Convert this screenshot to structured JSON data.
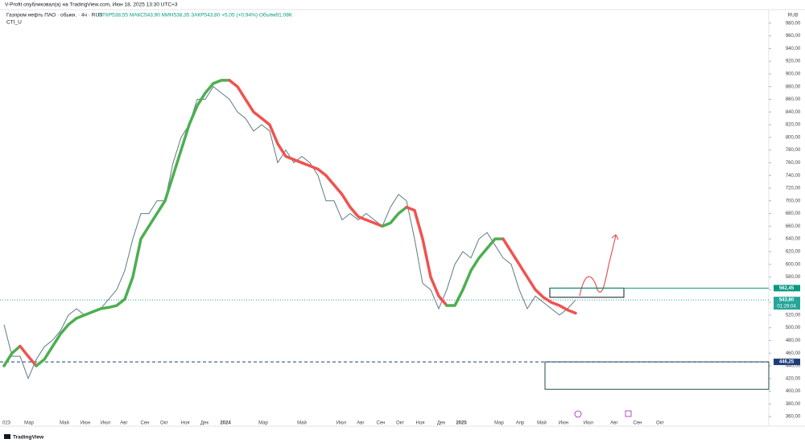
{
  "header": "V-Profit опубликовал(а) на TradingView.com, Июн 18, 2025 13:30 UTC+3",
  "footer": "TradingView",
  "chart_data": {
    "type": "line",
    "title": "Газпром нефть ПАО · обыкн. · 4ч · RUS",
    "ohlc_label": "ОТКР538,55 МАКС543,90 МИН538,35 ЗАКР543,80 +5,05 (+0,94%) Объём91,08K",
    "indicator": "CTI_U",
    "currency": "RUB",
    "x_labels": [
      "023",
      "Мар",
      "Май",
      "Июн",
      "Июл",
      "Авг",
      "Сен",
      "Окт",
      "Ноя",
      "Дек",
      "2024",
      "Мар",
      "Май",
      "Июл",
      "Авг",
      "Сен",
      "Окт",
      "Ноя",
      "Дек",
      "2025",
      "Мар",
      "Апр",
      "Май",
      "Июн",
      "Июл",
      "Авг",
      "Сен",
      "Окт"
    ],
    "series": [
      {
        "name": "Газпром нефть",
        "color": "#5d7b86",
        "values": [
          505,
          455,
          455,
          420,
          450,
          470,
          480,
          495,
          520,
          530,
          520,
          525,
          530,
          545,
          560,
          590,
          640,
          680,
          680,
          700,
          700,
          760,
          800,
          820,
          860,
          860,
          880,
          870,
          860,
          840,
          830,
          810,
          820,
          810,
          760,
          780,
          760,
          770,
          760,
          740,
          700,
          700,
          670,
          680,
          670,
          680,
          670,
          660,
          690,
          710,
          700,
          640,
          570,
          560,
          530,
          560,
          600,
          620,
          610,
          640,
          650,
          630,
          610,
          600,
          560,
          530,
          550,
          540,
          530,
          520,
          530,
          543.8
        ]
      },
      {
        "name": "CTI_U",
        "up_color": "#4caf50",
        "down_color": "#ef5350",
        "values": [
          440,
          460,
          471,
          455,
          440,
          450,
          470,
          490,
          505,
          515,
          520,
          525,
          530,
          532,
          535,
          545,
          580,
          640,
          660,
          680,
          700,
          740,
          780,
          820,
          850,
          870,
          885,
          890,
          890,
          880,
          860,
          840,
          830,
          820,
          790,
          770,
          765,
          760,
          755,
          750,
          740,
          725,
          710,
          690,
          675,
          670,
          665,
          660,
          665,
          680,
          690,
          685,
          640,
          580,
          550,
          535,
          535,
          560,
          590,
          610,
          625,
          640,
          640,
          620,
          600,
          580,
          560,
          548,
          540,
          535,
          528,
          523
        ]
      }
    ],
    "levels": [
      {
        "value": 562.45,
        "label": "562,45",
        "color": "#089981"
      },
      {
        "value": 543.8,
        "label": "543,80",
        "sublabel": "01:29:04",
        "color": "#26a69a"
      },
      {
        "value": 446.25,
        "label": "446,25",
        "color": "#1c3d7a"
      }
    ],
    "boxes": [
      {
        "range": [
          548,
          562.45
        ],
        "color": "#131722"
      },
      {
        "range": [
          403,
          446.25
        ],
        "color": "#1f4e4a"
      }
    ],
    "ylim": [
      345,
      1000
    ],
    "yticks": [
      {
        "value": 360,
        "label": "360,00"
      },
      {
        "value": 380,
        "label": "380,00"
      },
      {
        "value": 400,
        "label": "400,00"
      },
      {
        "value": 420,
        "label": "420,00"
      },
      {
        "value": 440,
        "label": "440,00"
      },
      {
        "value": 460,
        "label": "460,00"
      },
      {
        "value": 480,
        "label": "480,00"
      },
      {
        "value": 500,
        "label": "500,00"
      },
      {
        "value": 520,
        "label": "520,00"
      },
      {
        "value": 540,
        "label": "540,00"
      },
      {
        "value": 560,
        "label": "560,00"
      },
      {
        "value": 580,
        "label": "580,00"
      },
      {
        "value": 600,
        "label": "600,00"
      },
      {
        "value": 620,
        "label": "620,00"
      },
      {
        "value": 640,
        "label": "640,00"
      },
      {
        "value": 660,
        "label": "660,00"
      },
      {
        "value": 680,
        "label": "680,00"
      },
      {
        "value": 700,
        "label": "700,00"
      },
      {
        "value": 720,
        "label": "720,00"
      },
      {
        "value": 740,
        "label": "740,00"
      },
      {
        "value": 760,
        "label": "760,00"
      },
      {
        "value": 780,
        "label": "780,00"
      },
      {
        "value": 800,
        "label": "800,00"
      },
      {
        "value": 820,
        "label": "820,00"
      },
      {
        "value": 840,
        "label": "840,00"
      },
      {
        "value": 860,
        "label": "860,00"
      },
      {
        "value": 880,
        "label": "880,00"
      },
      {
        "value": 900,
        "label": "900,00"
      },
      {
        "value": 920,
        "label": "920,00"
      },
      {
        "value": 940,
        "label": "940,00"
      },
      {
        "value": 960,
        "label": "960,00"
      },
      {
        "value": 980,
        "label": "980,00"
      }
    ]
  }
}
